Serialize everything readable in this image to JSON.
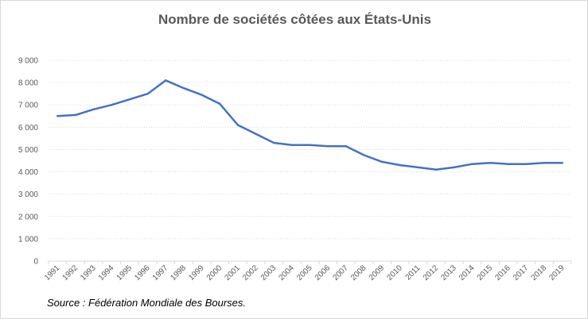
{
  "chart_data": {
    "type": "line",
    "title": "Nombre de sociétés côtées aux États-Unis",
    "xlabel": "",
    "ylabel": "",
    "ylim": [
      0,
      9000
    ],
    "yticks": [
      0,
      1000,
      2000,
      3000,
      4000,
      5000,
      6000,
      7000,
      8000,
      9000
    ],
    "ytick_labels": [
      "0",
      "1 000",
      "2 000",
      "3 000",
      "4 000",
      "5 000",
      "6 000",
      "7 000",
      "8 000",
      "9 000"
    ],
    "grid": "horizontal-dotted",
    "legend": "none",
    "x": [
      "1991",
      "1992",
      "1993",
      "1994",
      "1995",
      "1996",
      "1997",
      "1998",
      "1999",
      "2000",
      "2001",
      "2002",
      "2003",
      "2004",
      "2005",
      "2006",
      "2007",
      "2008",
      "2009",
      "2010",
      "2011",
      "2012",
      "2013",
      "2014",
      "2015",
      "2016",
      "2017",
      "2018",
      "2019"
    ],
    "series": [
      {
        "color": "#4472c4",
        "values": [
          6500,
          6550,
          6800,
          7000,
          7250,
          7500,
          8100,
          7750,
          7450,
          7050,
          6100,
          5700,
          5300,
          5200,
          5200,
          5150,
          5150,
          4750,
          4450,
          4300,
          4200,
          4100,
          4200,
          4350,
          4400,
          4350,
          4350,
          4400,
          4400
        ]
      }
    ]
  },
  "source_note": "Source : Fédération Mondiale des Bourses.",
  "colors": {
    "line": "#4472c4",
    "grid": "#d9d9d9",
    "axis": "#d9d9d9",
    "text": "#595959"
  }
}
